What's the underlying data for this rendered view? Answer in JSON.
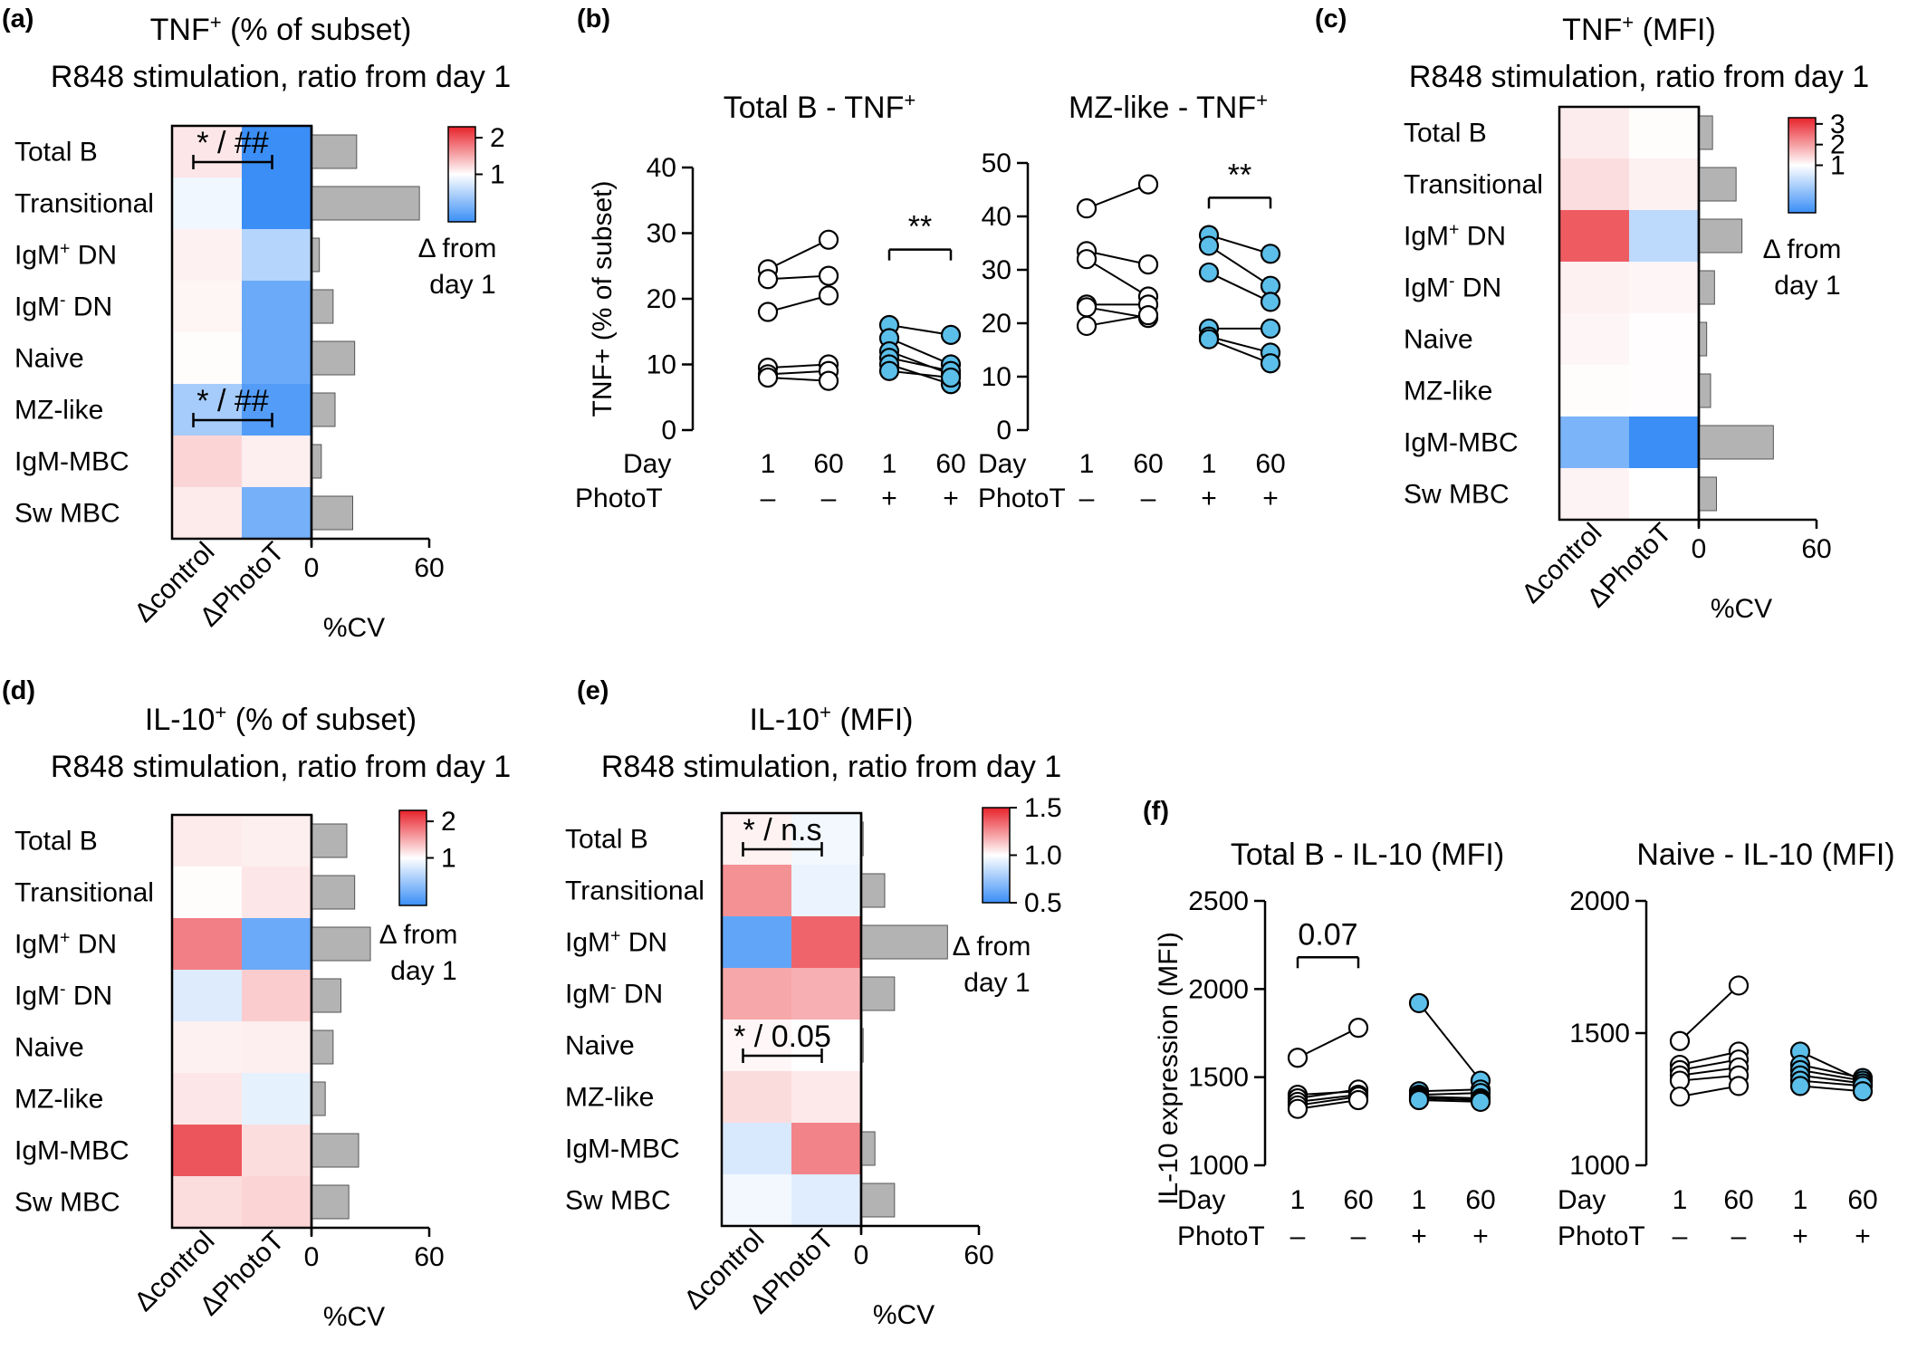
{
  "figure": {
    "colors": {
      "high": "#e8222b",
      "mid": "#ffffff",
      "low": "#3a8ef6",
      "bar": "#b3b3b3",
      "phototReplicate": "#5bbfea"
    },
    "panels": [
      {
        "id": "a",
        "label": "(a)",
        "title_main": "TNF",
        "title_sup": "+",
        "title_rest": " (% of subset)",
        "subtitle": "R848 stimulation, ratio from day 1",
        "rows": [
          {
            "m": "Total B",
            "s": "",
            "r": ""
          },
          {
            "m": "Transitional",
            "s": "",
            "r": ""
          },
          {
            "m": "IgM",
            "s": "+",
            "r": " DN"
          },
          {
            "m": "IgM",
            "s": "-",
            "r": " DN"
          },
          {
            "m": "Naive",
            "s": "",
            "r": ""
          },
          {
            "m": "MZ-like",
            "s": "",
            "r": ""
          },
          {
            "m": "IgM-MBC",
            "s": "",
            "r": ""
          },
          {
            "m": "Sw MBC",
            "s": "",
            "r": ""
          }
        ],
        "columns": [
          "Δcontrol",
          "ΔPhotoT"
        ],
        "values": [
          [
            1.15,
            0.6
          ],
          [
            0.97,
            0.5
          ],
          [
            1.08,
            0.85
          ],
          [
            1.06,
            0.7
          ],
          [
            1.02,
            0.7
          ],
          [
            0.82,
            0.65
          ],
          [
            1.25,
            1.1
          ],
          [
            1.12,
            0.72
          ]
        ],
        "color_range": [
          0.6,
          2.3
        ],
        "colorbar_ticks": [
          {
            "v": 2,
            "t": "2"
          },
          {
            "v": 1,
            "t": "1"
          }
        ],
        "legend_line1": "Δ from",
        "legend_line2": "day 1",
        "cv_values": [
          23,
          55,
          4,
          11,
          22,
          12,
          5,
          21
        ],
        "cv_axis_max": 60,
        "cv_ticks": [
          {
            "v": 0,
            "t": "0"
          },
          {
            "v": 60,
            "t": "60"
          }
        ],
        "cv_label": "%CV",
        "annotations": [
          {
            "row": 0,
            "text": "* / ##"
          },
          {
            "row": 5,
            "text": "* / ##"
          }
        ]
      },
      {
        "id": "c",
        "label": "(c)",
        "title_main": "TNF",
        "title_sup": "+",
        "title_rest": " (MFI)",
        "subtitle": "R848 stimulation, ratio from day 1",
        "rows": [
          {
            "m": "Total B",
            "s": "",
            "r": ""
          },
          {
            "m": "Transitional",
            "s": "",
            "r": ""
          },
          {
            "m": "IgM",
            "s": "+",
            "r": " DN"
          },
          {
            "m": "IgM",
            "s": "-",
            "r": " DN"
          },
          {
            "m": "Naive",
            "s": "",
            "r": ""
          },
          {
            "m": "MZ-like",
            "s": "",
            "r": ""
          },
          {
            "m": "IgM-MBC",
            "s": "",
            "r": ""
          },
          {
            "m": "Sw MBC",
            "s": "",
            "r": ""
          }
        ],
        "columns": [
          "Δcontrol",
          "ΔPhotoT"
        ],
        "values": [
          [
            1.2,
            1.03
          ],
          [
            1.35,
            1.15
          ],
          [
            2.7,
            0.85
          ],
          [
            1.15,
            1.1
          ],
          [
            1.1,
            1.02
          ],
          [
            1.03,
            1.02
          ],
          [
            0.7,
            0.35
          ],
          [
            1.12,
            1.0
          ]
        ],
        "color_range": [
          0.55,
          3.3
        ],
        "colorbar_ticks": [
          {
            "v": 3,
            "t": "3"
          },
          {
            "v": 2,
            "t": "2"
          },
          {
            "v": 1,
            "t": "1"
          }
        ],
        "legend_line1": "Δ from",
        "legend_line2": "day 1",
        "cv_values": [
          7,
          19,
          22,
          8,
          4,
          6,
          38,
          9
        ],
        "cv_axis_max": 60,
        "cv_ticks": [
          {
            "v": 0,
            "t": "0"
          },
          {
            "v": 60,
            "t": "60"
          }
        ],
        "cv_label": "%CV",
        "annotations": []
      },
      {
        "id": "d",
        "label": "(d)",
        "title_main": "IL-10",
        "title_sup": "+",
        "title_rest": " (% of subset)",
        "subtitle": "R848 stimulation, ratio from day 1",
        "rows": [
          {
            "m": "Total B",
            "s": "",
            "r": ""
          },
          {
            "m": "Transitional",
            "s": "",
            "r": ""
          },
          {
            "m": "IgM",
            "s": "+",
            "r": " DN"
          },
          {
            "m": "IgM",
            "s": "-",
            "r": " DN"
          },
          {
            "m": "Naive",
            "s": "",
            "r": ""
          },
          {
            "m": "MZ-like",
            "s": "",
            "r": ""
          },
          {
            "m": "IgM-MBC",
            "s": "",
            "r": ""
          },
          {
            "m": "Sw MBC",
            "s": "",
            "r": ""
          }
        ],
        "columns": [
          "Δcontrol",
          "ΔPhotoT"
        ],
        "values": [
          [
            1.12,
            1.1
          ],
          [
            1.02,
            1.15
          ],
          [
            1.75,
            0.7
          ],
          [
            0.93,
            1.3
          ],
          [
            1.08,
            1.1
          ],
          [
            1.15,
            0.95
          ],
          [
            2.0,
            1.2
          ],
          [
            1.2,
            1.25
          ]
        ],
        "color_range": [
          0.6,
          2.3
        ],
        "colorbar_ticks": [
          {
            "v": 2,
            "t": "2"
          },
          {
            "v": 1,
            "t": "1"
          }
        ],
        "legend_line1": "Δ from",
        "legend_line2": "day 1",
        "cv_values": [
          18,
          22,
          30,
          15,
          11,
          7,
          24,
          19
        ],
        "cv_axis_max": 60,
        "cv_ticks": [
          {
            "v": 0,
            "t": "0"
          },
          {
            "v": 60,
            "t": "60"
          }
        ],
        "cv_label": "%CV",
        "annotations": []
      },
      {
        "id": "e",
        "label": "(e)",
        "title_main": "IL-10",
        "title_sup": "+",
        "title_rest": " (MFI)",
        "subtitle": "R848 stimulation, ratio from day 1",
        "rows": [
          {
            "m": "Total B",
            "s": "",
            "r": ""
          },
          {
            "m": "Transitional",
            "s": "",
            "r": ""
          },
          {
            "m": "IgM",
            "s": "+",
            "r": " DN"
          },
          {
            "m": "IgM",
            "s": "-",
            "r": " DN"
          },
          {
            "m": "Naive",
            "s": "",
            "r": ""
          },
          {
            "m": "MZ-like",
            "s": "",
            "r": ""
          },
          {
            "m": "IgM-MBC",
            "s": "",
            "r": ""
          },
          {
            "m": "Sw MBC",
            "s": "",
            "r": ""
          }
        ],
        "columns": [
          "Δcontrol",
          "ΔPhotoT"
        ],
        "values": [
          [
            1.03,
            0.97
          ],
          [
            1.25,
            0.95
          ],
          [
            0.6,
            1.35
          ],
          [
            1.2,
            1.18
          ],
          [
            1.02,
            1.0
          ],
          [
            1.08,
            1.05
          ],
          [
            0.9,
            1.28
          ],
          [
            0.97,
            0.92
          ]
        ],
        "color_range": [
          0.5,
          1.5
        ],
        "colorbar_ticks": [
          {
            "v": 1.5,
            "t": "1.5"
          },
          {
            "v": 1.0,
            "t": "1.0"
          },
          {
            "v": 0.5,
            "t": "0.5"
          }
        ],
        "legend_line1": "Δ from",
        "legend_line2": "day 1",
        "cv_values": [
          1,
          12,
          44,
          17,
          1,
          0,
          7,
          17
        ],
        "cv_axis_max": 60,
        "cv_ticks": [
          {
            "v": 0,
            "t": "0"
          },
          {
            "v": 60,
            "t": "60"
          }
        ],
        "cv_label": "%CV",
        "annotations": [
          {
            "row": 0,
            "text": "* / n.s"
          },
          {
            "row": 4,
            "text": "* / 0.05"
          }
        ]
      }
    ],
    "b_label": "(b)",
    "f_label": "(f)",
    "b_ylabel": "TNF+ (% of subset)",
    "f_ylabel": "IL-10 expression (MFI)",
    "day_label": "Day",
    "photot_label": "PhotoT",
    "plots": [
      {
        "id": "b1",
        "title_main": "Total B - TNF",
        "title_sup": "+",
        "ylim": [
          0,
          40
        ],
        "ticks": [
          {
            "v": 0,
            "t": "0"
          },
          {
            "v": 10,
            "t": "10"
          },
          {
            "v": 20,
            "t": "20"
          },
          {
            "v": 30,
            "t": "30"
          },
          {
            "v": 40,
            "t": "40"
          }
        ],
        "conditions": [
          {
            "day": "1",
            "photot": "–"
          },
          {
            "day": "60",
            "photot": "–"
          },
          {
            "day": "1",
            "photot": "+"
          },
          {
            "day": "60",
            "photot": "+"
          }
        ],
        "pairs_control": [
          [
            24.5,
            29
          ],
          [
            23,
            23.5
          ],
          [
            18,
            20.5
          ],
          [
            9.5,
            10
          ],
          [
            8.5,
            9
          ],
          [
            8,
            7.5
          ]
        ],
        "pairs_photot": [
          [
            16,
            14.5
          ],
          [
            14,
            10
          ],
          [
            12,
            8.5
          ],
          [
            11,
            9
          ],
          [
            10,
            7
          ],
          [
            9,
            8
          ]
        ],
        "significance": [
          {
            "text": "**",
            "from": 2,
            "to": 3,
            "at": 27.5
          }
        ]
      },
      {
        "id": "b2",
        "title_main": "MZ-like - TNF",
        "title_sup": "+",
        "ylim": [
          0,
          50
        ],
        "ticks": [
          {
            "v": 0,
            "t": "0"
          },
          {
            "v": 10,
            "t": "10"
          },
          {
            "v": 20,
            "t": "20"
          },
          {
            "v": 30,
            "t": "30"
          },
          {
            "v": 40,
            "t": "40"
          },
          {
            "v": 50,
            "t": "50"
          }
        ],
        "conditions": [
          {
            "day": "1",
            "photot": "–"
          },
          {
            "day": "60",
            "photot": "–"
          },
          {
            "day": "1",
            "photot": "+"
          },
          {
            "day": "60",
            "photot": "+"
          }
        ],
        "pairs_control": [
          [
            41.5,
            46
          ],
          [
            33.5,
            31
          ],
          [
            32,
            25
          ],
          [
            23.5,
            23.5
          ],
          [
            23,
            21
          ],
          [
            19.5,
            21.5
          ]
        ],
        "pairs_photot": [
          [
            36.5,
            33
          ],
          [
            34.5,
            27
          ],
          [
            29.5,
            24
          ],
          [
            19,
            19
          ],
          [
            17.5,
            14.5
          ],
          [
            17,
            12.5
          ]
        ],
        "significance": [
          {
            "text": "**",
            "from": 2,
            "to": 3,
            "at": 43.5
          }
        ]
      },
      {
        "id": "f1",
        "title_main": "Total B - IL-10 (MFI)",
        "title_sup": "",
        "ylim": [
          1000,
          2500
        ],
        "ticks": [
          {
            "v": 1000,
            "t": "1000"
          },
          {
            "v": 1500,
            "t": "1500"
          },
          {
            "v": 2000,
            "t": "2000"
          },
          {
            "v": 2500,
            "t": "2500"
          }
        ],
        "conditions": [
          {
            "day": "1",
            "photot": "–"
          },
          {
            "day": "60",
            "photot": "–"
          },
          {
            "day": "1",
            "photot": "+"
          },
          {
            "day": "60",
            "photot": "+"
          }
        ],
        "pairs_control": [
          [
            1610,
            1780
          ],
          [
            1400,
            1420
          ],
          [
            1380,
            1430
          ],
          [
            1360,
            1400
          ],
          [
            1340,
            1390
          ],
          [
            1320,
            1370
          ]
        ],
        "pairs_photot": [
          [
            1920,
            1480
          ],
          [
            1420,
            1430
          ],
          [
            1400,
            1410
          ],
          [
            1390,
            1380
          ],
          [
            1380,
            1370
          ],
          [
            1370,
            1360
          ]
        ],
        "significance": [
          {
            "text": "0.07",
            "from": 0,
            "to": 1,
            "at": 2180
          }
        ]
      },
      {
        "id": "f2",
        "title_main": "Naive - IL-10 (MFI)",
        "title_sup": "",
        "ylim": [
          1000,
          2000
        ],
        "ticks": [
          {
            "v": 1000,
            "t": "1000"
          },
          {
            "v": 1500,
            "t": "1500"
          },
          {
            "v": 2000,
            "t": "2000"
          }
        ],
        "conditions": [
          {
            "day": "1",
            "photot": "–"
          },
          {
            "day": "60",
            "photot": "–"
          },
          {
            "day": "1",
            "photot": "+"
          },
          {
            "day": "60",
            "photot": "+"
          }
        ],
        "pairs_control": [
          [
            1470,
            1680
          ],
          [
            1380,
            1430
          ],
          [
            1360,
            1400
          ],
          [
            1340,
            1370
          ],
          [
            1320,
            1340
          ],
          [
            1260,
            1300
          ]
        ],
        "pairs_photot": [
          [
            1430,
            1320
          ],
          [
            1380,
            1330
          ],
          [
            1360,
            1320
          ],
          [
            1340,
            1310
          ],
          [
            1320,
            1300
          ],
          [
            1300,
            1280
          ]
        ],
        "significance": []
      }
    ]
  }
}
